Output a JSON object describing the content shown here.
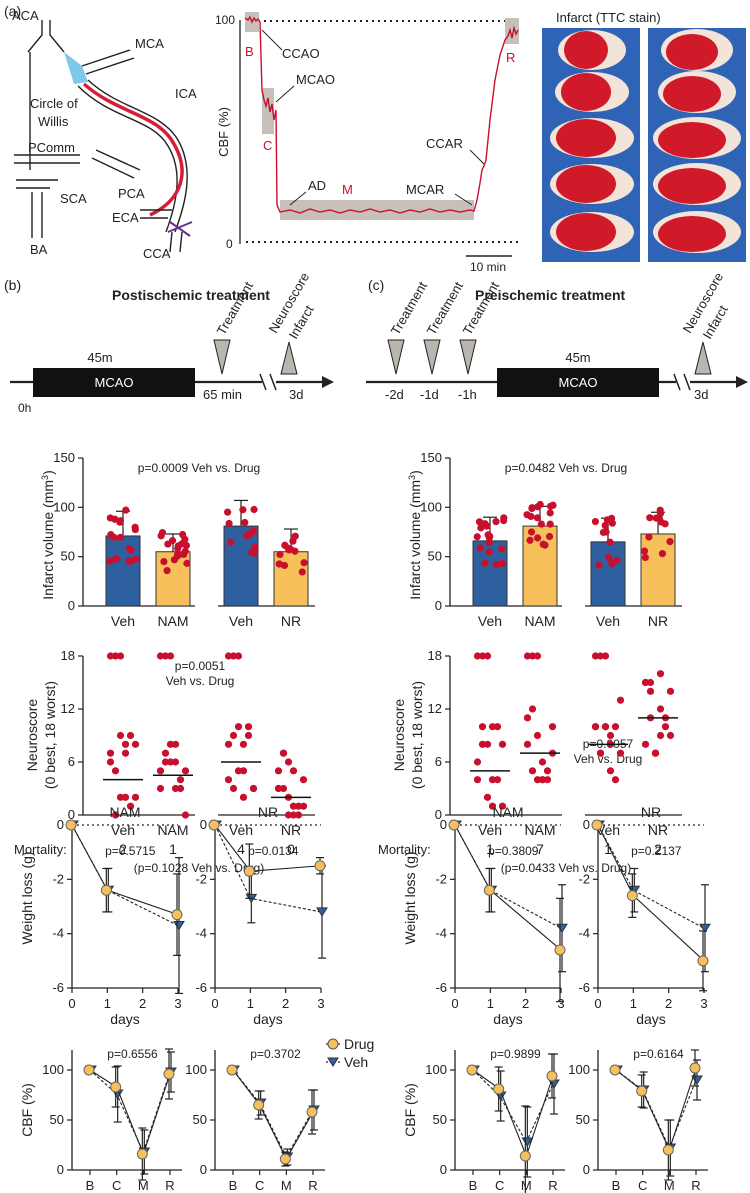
{
  "colors": {
    "veh": "#2e5f9e",
    "nam": "#f7c05a",
    "dot": "#c8102e",
    "drug": "#f7c05a",
    "veh_marker": "#2e5f9e"
  },
  "panel_a": {
    "label": "(a)",
    "anatomy": [
      "ACA",
      "MCA",
      "Circle of",
      "Willis",
      "ICA",
      "PComm",
      "PCA",
      "SCA",
      "ECA",
      "BA",
      "CCA"
    ],
    "cbf_trace": {
      "ylabel": "CBF (%)",
      "y_top": "100",
      "y_bottom": "0",
      "letters": [
        "B",
        "C",
        "M",
        "R"
      ],
      "events": [
        "CCAO",
        "MCAO",
        "AD",
        "MCAR",
        "CCAR"
      ],
      "scale_bar": "10 min"
    },
    "ttc_title": "Infarct (TTC stain)"
  },
  "panel_b": {
    "label": "(b)",
    "title": "Postischemic treatment",
    "timeline": {
      "duration": "45m",
      "box": "MCAO",
      "start": "0h",
      "delay": "65 min",
      "end": "3d",
      "markers": [
        "Treatment",
        "Neuroscore",
        "Infarct"
      ]
    }
  },
  "panel_c": {
    "label": "(c)",
    "title": "Preischemic treatment",
    "timeline": {
      "duration": "45m",
      "box": "MCAO",
      "times": [
        "-2d",
        "-1d",
        "-1h"
      ],
      "end": "3d",
      "markers": [
        "Treatment",
        "Treatment",
        "Treatment",
        "Neuroscore",
        "Infarct"
      ]
    }
  },
  "infarct_ylabel": "Infarct volume (mm",
  "infarct_ylabel_sup": "3",
  "neuro_ylabel1": "Neuroscore",
  "neuro_ylabel2": "(0 best, 18 worst)",
  "mortality_label": "Mortality:",
  "weight_ylabel": "Weight loss (g)",
  "weight_xlabel": "days",
  "cbf_ylabel": "CBF (%)",
  "legend": {
    "drug": "Drug",
    "veh": "Veh"
  },
  "chart_data": [
    {
      "id": "b_infarct",
      "type": "bar",
      "title": "p=0.0009 Veh vs. Drug",
      "ylabel": "Infarct volume (mm3)",
      "categories": [
        "Veh",
        "NAM",
        "Veh",
        "NR"
      ],
      "values": [
        71,
        55,
        81,
        55
      ],
      "sd": [
        25,
        18,
        26,
        23
      ],
      "ylim": [
        0,
        150
      ],
      "yticks": [
        0,
        50,
        100,
        150
      ]
    },
    {
      "id": "b_neuro",
      "type": "scatter",
      "title": "p=0.0051",
      "subtitle": "Veh vs. Drug",
      "ylabel": "Neuroscore (0 best, 18 worst)",
      "categories": [
        "Veh",
        "NAM",
        "Veh",
        "NR"
      ],
      "medians": [
        4,
        4.5,
        6,
        2
      ],
      "ylim": [
        0,
        18
      ],
      "yticks": [
        0,
        6,
        12,
        18
      ],
      "mortality": [
        "2",
        "1",
        "4",
        "0"
      ],
      "mortality_p": "(p=0.1028 Veh vs. Drug)"
    },
    {
      "id": "c_infarct",
      "type": "bar",
      "title": "p=0.0482 Veh vs. Drug",
      "ylabel": "Infarct volume (mm3)",
      "categories": [
        "Veh",
        "NAM",
        "Veh",
        "NR"
      ],
      "values": [
        66,
        81,
        65,
        73
      ],
      "sd": [
        24,
        20,
        24,
        22
      ],
      "ylim": [
        0,
        150
      ],
      "yticks": [
        0,
        50,
        100,
        150
      ]
    },
    {
      "id": "c_neuro",
      "type": "scatter",
      "title": "p=0.0057",
      "subtitle": "Veh vs. Drug",
      "ylabel": "Neuroscore (0 best, 18 worst)",
      "categories": [
        "Veh",
        "NAM",
        "Veh",
        "NR"
      ],
      "medians": [
        5,
        7,
        8,
        11
      ],
      "ylim": [
        0,
        18
      ],
      "yticks": [
        0,
        6,
        12,
        18
      ],
      "mortality": [
        "1",
        "7",
        "1",
        "2"
      ],
      "mortality_p": "(p=0.0433 Veh vs. Drug)"
    },
    {
      "id": "b_w_nam",
      "type": "line",
      "title": "NAM",
      "pvalue": "p=0.5715",
      "x": [
        0,
        1,
        3
      ],
      "series": [
        {
          "name": "Drug",
          "values": [
            0,
            -2.4,
            -3.3
          ],
          "err": [
            0,
            0.8,
            1.5
          ]
        },
        {
          "name": "Veh",
          "values": [
            0,
            -2.4,
            -3.7
          ],
          "err": [
            0,
            0.8,
            2.5
          ]
        }
      ],
      "ylim": [
        -6,
        0
      ],
      "yticks": [
        0,
        -2,
        -4,
        -6
      ],
      "xticks": [
        0,
        1,
        2,
        3
      ]
    },
    {
      "id": "b_w_nr",
      "type": "line",
      "title": "NR",
      "pvalue": "p=0.0134",
      "x": [
        0,
        1,
        3
      ],
      "series": [
        {
          "name": "Drug",
          "values": [
            0,
            -1.7,
            -1.5
          ],
          "err": [
            0,
            1.0,
            0.3
          ]
        },
        {
          "name": "Veh",
          "values": [
            0,
            -2.7,
            -3.2
          ],
          "err": [
            0,
            0.9,
            1.7
          ]
        }
      ],
      "ylim": [
        -6,
        0
      ],
      "yticks": [
        0,
        -2,
        -4,
        -6
      ],
      "xticks": [
        0,
        1,
        2,
        3
      ]
    },
    {
      "id": "c_w_nam",
      "type": "line",
      "title": "NAM",
      "pvalue": "p=0.3809",
      "x": [
        0,
        1,
        3
      ],
      "series": [
        {
          "name": "Drug",
          "values": [
            0,
            -2.4,
            -4.6
          ],
          "err": [
            0,
            0.8,
            1.9
          ]
        },
        {
          "name": "Veh",
          "values": [
            0,
            -2.4,
            -3.8
          ],
          "err": [
            0,
            0.8,
            1.6
          ]
        }
      ],
      "ylim": [
        -6,
        0
      ],
      "yticks": [
        0,
        -2,
        -4,
        -6
      ],
      "xticks": [
        0,
        1,
        2,
        3
      ]
    },
    {
      "id": "c_w_nr",
      "type": "line",
      "title": "NR",
      "pvalue": "p=0.2137",
      "x": [
        0,
        1,
        3
      ],
      "series": [
        {
          "name": "Drug",
          "values": [
            0,
            -2.6,
            -5.0
          ],
          "err": [
            0,
            0.8,
            1.1
          ]
        },
        {
          "name": "Veh",
          "values": [
            0,
            -2.4,
            -3.8
          ],
          "err": [
            0,
            0.8,
            1.6
          ]
        }
      ],
      "ylim": [
        -6,
        0
      ],
      "yticks": [
        0,
        -2,
        -4,
        -6
      ],
      "xticks": [
        0,
        1,
        2,
        3
      ]
    },
    {
      "id": "b_cbf_nam",
      "type": "line",
      "pvalue": "p=0.6556",
      "categories": [
        "B",
        "C",
        "M",
        "R"
      ],
      "series": [
        {
          "name": "Drug",
          "values": [
            100,
            83,
            16,
            96
          ],
          "err": [
            3,
            20,
            26,
            25
          ]
        },
        {
          "name": "Veh",
          "values": [
            100,
            76,
            18,
            98
          ],
          "err": [
            3,
            28,
            22,
            20
          ]
        }
      ],
      "ylim": [
        0,
        120
      ],
      "yticks": [
        0,
        50,
        100
      ]
    },
    {
      "id": "b_cbf_nr",
      "type": "line",
      "pvalue": "p=0.3702",
      "categories": [
        "B",
        "C",
        "M",
        "R"
      ],
      "series": [
        {
          "name": "Drug",
          "values": [
            100,
            65,
            11,
            58
          ],
          "err": [
            3,
            14,
            7,
            22
          ]
        },
        {
          "name": "Veh",
          "values": [
            100,
            67,
            13,
            60
          ],
          "err": [
            3,
            12,
            8,
            20
          ]
        }
      ],
      "ylim": [
        0,
        120
      ],
      "yticks": [
        0,
        50,
        100
      ]
    },
    {
      "id": "c_cbf_nam",
      "type": "line",
      "pvalue": "p=0.9899",
      "categories": [
        "B",
        "C",
        "M",
        "R"
      ],
      "series": [
        {
          "name": "Drug",
          "values": [
            100,
            81,
            14,
            94
          ],
          "err": [
            3,
            22,
            50,
            22
          ]
        },
        {
          "name": "Veh",
          "values": [
            100,
            74,
            28,
            86
          ],
          "err": [
            3,
            25,
            35,
            30
          ]
        }
      ],
      "ylim": [
        0,
        120
      ],
      "yticks": [
        0,
        50,
        100
      ]
    },
    {
      "id": "c_cbf_nr",
      "type": "line",
      "pvalue": "p=0.6164",
      "categories": [
        "B",
        "C",
        "M",
        "R"
      ],
      "series": [
        {
          "name": "Drug",
          "values": [
            100,
            79,
            20,
            102
          ],
          "err": [
            3,
            16,
            30,
            18
          ]
        },
        {
          "name": "Veh",
          "values": [
            100,
            80,
            22,
            90
          ],
          "err": [
            3,
            18,
            28,
            20
          ]
        }
      ],
      "ylim": [
        0,
        120
      ],
      "yticks": [
        0,
        50,
        100
      ]
    }
  ]
}
